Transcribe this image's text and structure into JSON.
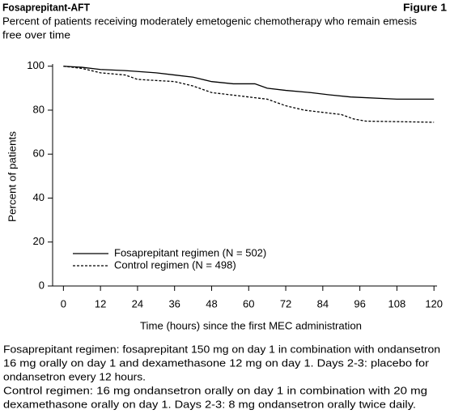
{
  "chart_data": {
    "type": "line",
    "title": "Fosaprepitant-AFT",
    "figure_label": "Figure 1",
    "subtitle": [
      "Percent of patients receiving moderately emetogenic chemotherapy who remain emesis",
      "free over time"
    ],
    "xlabel": "Time (hours) since the first MEC administration",
    "ylabel": "Percent of patients",
    "xlim": [
      -3.5,
      121
    ],
    "ylim": [
      0,
      101
    ],
    "xticks": [
      0,
      12,
      24,
      36,
      48,
      60,
      72,
      84,
      96,
      108,
      120
    ],
    "yticks": [
      0,
      20,
      40,
      60,
      80,
      100
    ],
    "legend": "lower left",
    "series": [
      {
        "name": "Fosaprepitant regimen (N = 502)",
        "color": "#000000",
        "dash": "solid",
        "x": [
          0,
          6,
          12,
          20,
          30,
          36,
          42,
          48,
          55,
          62,
          66,
          72,
          80,
          86,
          93,
          108,
          120
        ],
        "values": [
          100,
          99.5,
          98.5,
          98,
          97,
          96,
          95,
          93,
          92,
          92,
          90,
          89,
          88,
          87,
          86,
          85,
          85
        ]
      },
      {
        "name": "Control regimen (N = 498)",
        "color": "#000000",
        "dash": "dashed",
        "x": [
          0,
          6,
          12,
          20,
          24,
          36,
          42,
          48,
          54,
          60,
          66,
          72,
          78,
          84,
          90,
          94,
          98,
          120
        ],
        "values": [
          100,
          99,
          97,
          96,
          94,
          93,
          91,
          88,
          87,
          86,
          85,
          82,
          80,
          79,
          78,
          76,
          75,
          74.5
        ]
      }
    ],
    "notes": [
      "Fosaprepitant regimen: fosaprepitant 150 mg on day 1 in combination with ondansetron",
      "16 mg orally on day 1 and dexamethasone 12 mg on day 1. Days 2-3: placebo for",
      "ondansetron every 12 hours.",
      "Control regimen: 16 mg ondansetron orally on day 1 in combination with 20 mg",
      "dexamethasone orally on day 1. Days 2-3: 8 mg ondansetron orally twice daily."
    ]
  }
}
